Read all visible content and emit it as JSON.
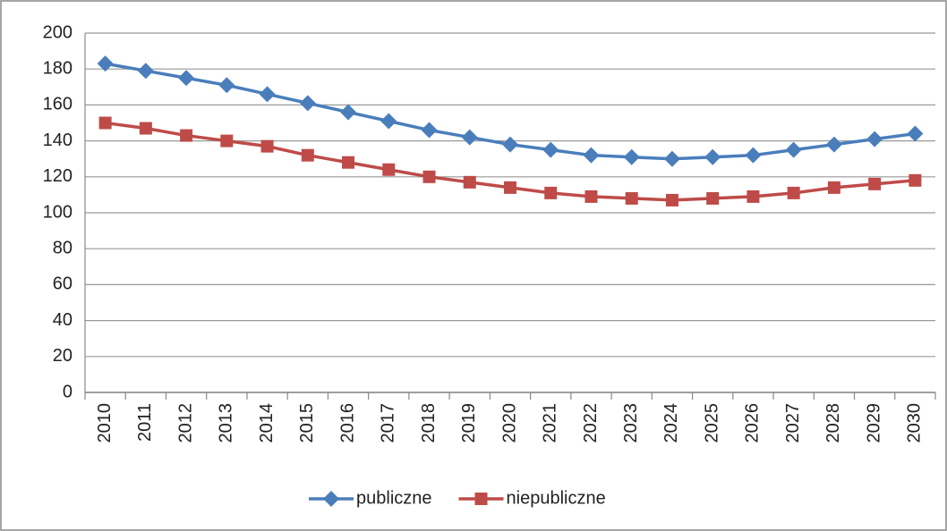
{
  "chart_data": {
    "type": "line",
    "categories": [
      "2010",
      "2011",
      "2012",
      "2013",
      "2014",
      "2015",
      "2016",
      "2017",
      "2018",
      "2019",
      "2020",
      "2021",
      "2022",
      "2023",
      "2024",
      "2025",
      "2026",
      "2027",
      "2028",
      "2029",
      "2030"
    ],
    "series": [
      {
        "name": "publiczne",
        "color": "#4a7ebb",
        "marker": "diamond",
        "values": [
          183,
          179,
          175,
          171,
          166,
          161,
          156,
          151,
          146,
          142,
          138,
          135,
          132,
          131,
          130,
          131,
          132,
          135,
          138,
          141,
          144
        ]
      },
      {
        "name": "niepubliczne",
        "color": "#be4b48",
        "marker": "square",
        "values": [
          150,
          147,
          143,
          140,
          137,
          132,
          128,
          124,
          120,
          117,
          114,
          111,
          109,
          108,
          107,
          108,
          109,
          111,
          114,
          116,
          118
        ]
      }
    ],
    "ylim": [
      0,
      200
    ],
    "yticks": [
      0,
      20,
      40,
      60,
      80,
      100,
      120,
      140,
      160,
      180,
      200
    ],
    "grid": true,
    "legend": "bottom"
  }
}
